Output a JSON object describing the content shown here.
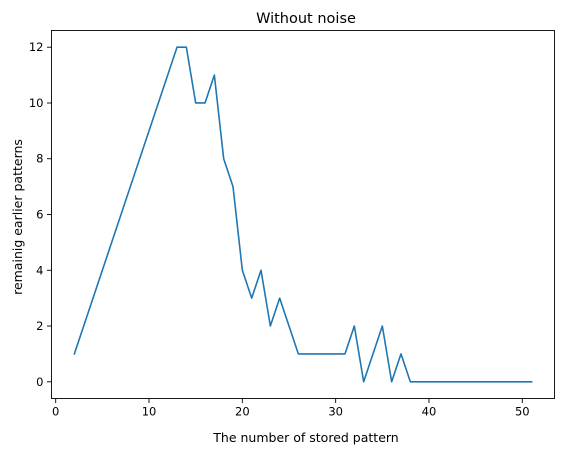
{
  "chart_data": {
    "type": "line",
    "title": "Without noise",
    "xlabel": "The number of stored pattern",
    "ylabel": "remainig earlier patterns",
    "xlim": [
      -0.45,
      53.45
    ],
    "ylim": [
      -0.6,
      12.6
    ],
    "xticks": [
      0,
      10,
      20,
      30,
      40,
      50
    ],
    "yticks": [
      0,
      2,
      4,
      6,
      8,
      10,
      12
    ],
    "grid": false,
    "legend": "none",
    "series": [
      {
        "color": "#1f77b4",
        "x": [
          2,
          13,
          14,
          15,
          16,
          17,
          18,
          19,
          20,
          21,
          22,
          23,
          24,
          25,
          26,
          27,
          28,
          29,
          30,
          31,
          32,
          33,
          34,
          35,
          36,
          37,
          38,
          39,
          40,
          41,
          42,
          43,
          44,
          45,
          46,
          47,
          48,
          49,
          50,
          51
        ],
        "y": [
          1,
          12,
          12,
          10,
          10,
          11,
          8,
          7,
          4,
          3,
          4,
          2,
          3,
          2,
          1,
          1,
          1,
          1,
          1,
          1,
          2,
          0,
          1,
          2,
          0,
          1,
          0,
          0,
          0,
          0,
          0,
          0,
          0,
          0,
          0,
          0,
          0,
          0,
          0,
          0
        ]
      }
    ]
  }
}
